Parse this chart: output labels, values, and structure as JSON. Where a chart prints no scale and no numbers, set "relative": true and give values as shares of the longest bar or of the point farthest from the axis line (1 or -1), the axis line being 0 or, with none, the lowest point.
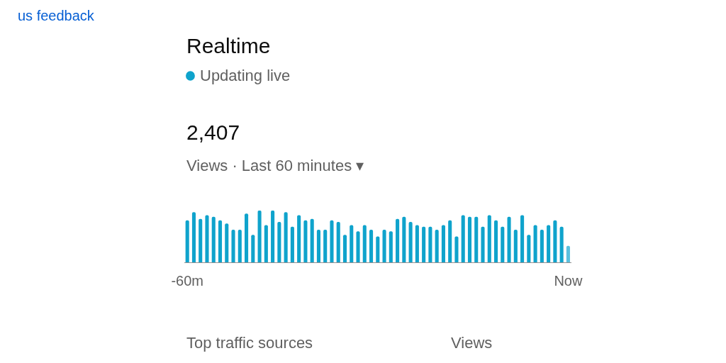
{
  "chart_data": {
    "type": "bar",
    "title": "Realtime",
    "subtitle": "Updating live",
    "relative": true,
    "categories": [
      "-60m",
      null,
      null,
      null,
      null,
      null,
      null,
      null,
      null,
      null,
      null,
      null,
      null,
      null,
      null,
      null,
      null,
      null,
      null,
      null,
      null,
      null,
      null,
      null,
      null,
      null,
      null,
      null,
      null,
      null,
      null,
      null,
      null,
      null,
      null,
      null,
      null,
      null,
      null,
      null,
      null,
      null,
      null,
      null,
      null,
      null,
      null,
      null,
      null,
      null,
      null,
      null,
      null,
      null,
      null,
      null,
      null,
      null,
      "Now"
    ],
    "values": [
      0.81,
      0.97,
      0.84,
      0.91,
      0.88,
      0.81,
      0.75,
      0.63,
      0.63,
      0.94,
      0.53,
      1.0,
      0.72,
      1.0,
      0.78,
      0.97,
      0.69,
      0.91,
      0.81,
      0.84,
      0.63,
      0.63,
      0.81,
      0.78,
      0.53,
      0.72,
      0.6,
      0.72,
      0.63,
      0.5,
      0.63,
      0.6,
      0.84,
      0.88,
      0.78,
      0.72,
      0.69,
      0.69,
      0.63,
      0.72,
      0.81,
      0.5,
      0.91,
      0.88,
      0.88,
      0.69,
      0.91,
      0.81,
      0.69,
      0.88,
      0.63,
      0.91,
      0.53,
      0.72,
      0.63,
      0.72,
      0.81,
      0.69,
      0.32
    ],
    "colors": [
      "#0fa3cc",
      "#0fa3cc",
      "#0fa3cc",
      "#0fa3cc",
      "#0fa3cc",
      "#0fa3cc",
      "#0fa3cc",
      "#0fa3cc",
      "#0fa3cc",
      "#0fa3cc",
      "#0fa3cc",
      "#0fa3cc",
      "#0fa3cc",
      "#0fa3cc",
      "#0fa3cc",
      "#0fa3cc",
      "#0fa3cc",
      "#0fa3cc",
      "#0fa3cc",
      "#0fa3cc",
      "#0fa3cc",
      "#0fa3cc",
      "#0fa3cc",
      "#0fa3cc",
      "#0fa3cc",
      "#0fa3cc",
      "#0fa3cc",
      "#0fa3cc",
      "#0fa3cc",
      "#0fa3cc",
      "#0fa3cc",
      "#0fa3cc",
      "#0fa3cc",
      "#0fa3cc",
      "#0fa3cc",
      "#0fa3cc",
      "#0fa3cc",
      "#0fa3cc",
      "#0fa3cc",
      "#0fa3cc",
      "#0fa3cc",
      "#0fa3cc",
      "#0fa3cc",
      "#0fa3cc",
      "#0fa3cc",
      "#0fa3cc",
      "#0fa3cc",
      "#0fa3cc",
      "#0fa3cc",
      "#0fa3cc",
      "#0fa3cc",
      "#0fa3cc",
      "#0fa3cc",
      "#0fa3cc",
      "#0fa3cc",
      "#0fa3cc",
      "#0fa3cc",
      "#0fa3cc",
      "#5bc0de"
    ],
    "annotations": [
      "2,407",
      "Views · Last 60 minutes ▾",
      "Top traffic sources",
      "Views",
      "us feedback"
    ],
    "legend": false
  }
}
